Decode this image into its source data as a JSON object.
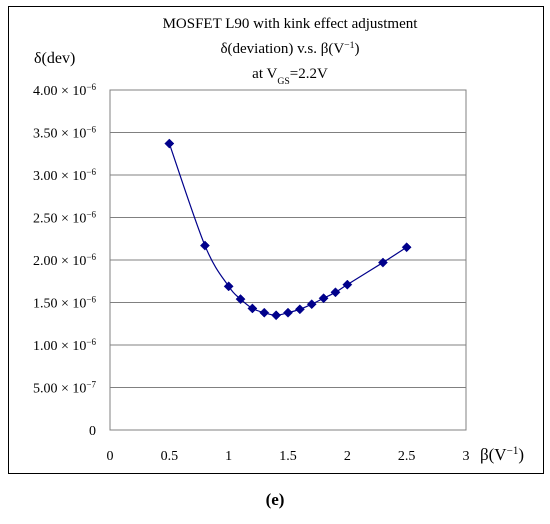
{
  "chart_data": {
    "type": "line",
    "title_lines": [
      {
        "parts": [
          {
            "t": "MOSFET L90 with kink effect adjustment"
          }
        ]
      },
      {
        "parts": [
          {
            "t": "δ(deviation) v.s. β(V"
          },
          {
            "t": "−1",
            "sup": true
          },
          {
            "t": ")"
          }
        ]
      },
      {
        "parts": [
          {
            "t": "at V"
          },
          {
            "t": "GS",
            "sub": true
          },
          {
            "t": "=2.2V"
          }
        ]
      }
    ],
    "ylabel": "δ(dev)",
    "xlabel_parts": [
      {
        "t": "β(V"
      },
      {
        "t": "−1",
        "sup": true
      },
      {
        "t": ")"
      }
    ],
    "xlim": [
      0,
      3
    ],
    "ylim": [
      0,
      4e-06
    ],
    "x_ticks": [
      {
        "v": 0,
        "label": "0"
      },
      {
        "v": 0.5,
        "label": "0.5"
      },
      {
        "v": 1,
        "label": "1"
      },
      {
        "v": 1.5,
        "label": "1.5"
      },
      {
        "v": 2,
        "label": "2"
      },
      {
        "v": 2.5,
        "label": "2.5"
      },
      {
        "v": 3,
        "label": "3"
      }
    ],
    "y_ticks": [
      {
        "v": 0,
        "mant": "0",
        "exp": ""
      },
      {
        "v": 5e-07,
        "mant": "5.00 × 10",
        "exp": "−7"
      },
      {
        "v": 1e-06,
        "mant": "1.00 × 10",
        "exp": "−6"
      },
      {
        "v": 1.5e-06,
        "mant": "1.50 × 10",
        "exp": "−6"
      },
      {
        "v": 2e-06,
        "mant": "2.00 × 10",
        "exp": "−6"
      },
      {
        "v": 2.5e-06,
        "mant": "2.50 × 10",
        "exp": "−6"
      },
      {
        "v": 3e-06,
        "mant": "3.00 × 10",
        "exp": "−6"
      },
      {
        "v": 3.5e-06,
        "mant": "3.50 × 10",
        "exp": "−6"
      },
      {
        "v": 4e-06,
        "mant": "4.00 × 10",
        "exp": "−6"
      }
    ],
    "grid": "horizontal",
    "marker": "diamond",
    "color": "#00008b",
    "series": [
      {
        "x": [
          0.5,
          0.8,
          1.0,
          1.1,
          1.2,
          1.3,
          1.4,
          1.5,
          1.6,
          1.7,
          1.8,
          1.9,
          2.0,
          2.3,
          2.5
        ],
        "y": [
          3.37e-06,
          2.17e-06,
          1.69e-06,
          1.54e-06,
          1.43e-06,
          1.38e-06,
          1.35e-06,
          1.38e-06,
          1.42e-06,
          1.48e-06,
          1.55e-06,
          1.62e-06,
          1.71e-06,
          1.97e-06,
          2.15e-06
        ]
      }
    ]
  },
  "caption": "(e)"
}
